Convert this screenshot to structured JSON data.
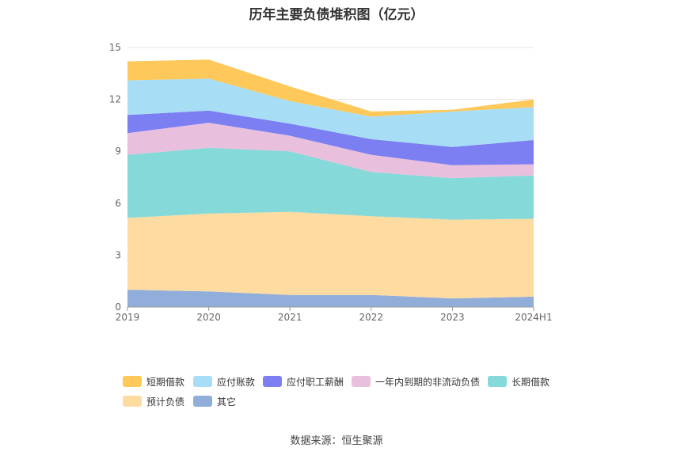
{
  "chart_data": {
    "type": "area",
    "stacked": true,
    "title": "历年主要负债堆积图（亿元）",
    "categories": [
      "2019",
      "2020",
      "2021",
      "2022",
      "2023",
      "2024H1"
    ],
    "ylim": [
      0,
      15
    ],
    "yticks": [
      0,
      3,
      6,
      9,
      12,
      15
    ],
    "grid": true,
    "legend_position": "bottom",
    "series": [
      {
        "name": "其它",
        "color": "#91aedb",
        "values": [
          1.0,
          0.9,
          0.7,
          0.7,
          0.5,
          0.6
        ]
      },
      {
        "name": "预计负债",
        "color": "#fedba0",
        "values": [
          4.15,
          4.5,
          4.8,
          4.55,
          4.55,
          4.5
        ]
      },
      {
        "name": "长期借款",
        "color": "#85d9d9",
        "values": [
          3.65,
          3.8,
          3.5,
          2.55,
          2.4,
          2.5
        ]
      },
      {
        "name": "一年内到期的非流动负债",
        "color": "#e8bfdd",
        "values": [
          1.25,
          1.45,
          0.9,
          1.0,
          0.75,
          0.65
        ]
      },
      {
        "name": "应付职工薪酬",
        "color": "#7b7ff2",
        "values": [
          1.05,
          0.7,
          0.7,
          0.9,
          1.05,
          1.4
        ]
      },
      {
        "name": "应付账款",
        "color": "#a8ddf6",
        "values": [
          2.0,
          1.85,
          1.3,
          1.3,
          2.05,
          1.9
        ]
      },
      {
        "name": "短期借款",
        "color": "#fec85a",
        "values": [
          1.1,
          1.1,
          0.85,
          0.3,
          0.1,
          0.45
        ]
      }
    ]
  },
  "legend_order": [
    "短期借款",
    "应付账款",
    "应付职工薪酬",
    "一年内到期的非流动负债",
    "长期借款",
    "预计负债",
    "其它"
  ],
  "source": "数据来源：恒生聚源"
}
